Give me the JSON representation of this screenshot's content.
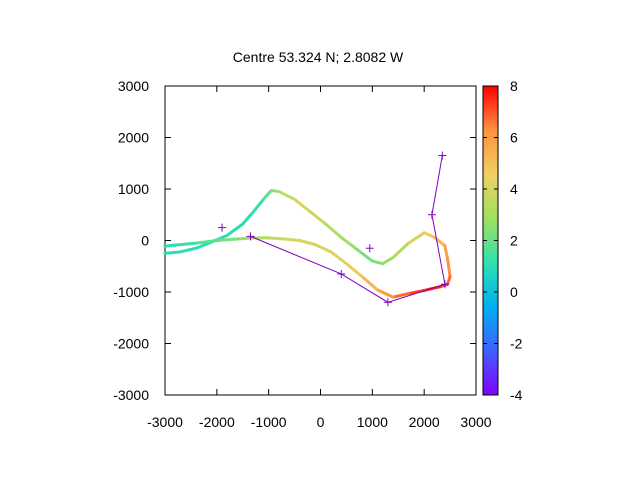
{
  "chart_data": {
    "type": "line",
    "title": "Centre 53.324 N; 2.8082  W",
    "xlabel": "",
    "ylabel": "",
    "xlim": [
      -3000,
      3000
    ],
    "ylim": [
      -3000,
      3000
    ],
    "xticks": [
      "-3000",
      "-2000",
      "-1000",
      "0",
      "1000",
      "2000",
      "3000"
    ],
    "yticks": [
      "3000",
      "2000",
      "1000",
      "0",
      "-1000",
      "-2000",
      "-3000"
    ],
    "grid": false,
    "colorbar": {
      "range": [
        -4,
        8
      ],
      "ticks": [
        "8",
        "6",
        "4",
        "2",
        "0",
        "-2",
        "-4"
      ],
      "palette": [
        "#8000ff",
        "#4060ff",
        "#00b0f0",
        "#30e0b0",
        "#a0e060",
        "#f0d060",
        "#ff9040",
        "#ff0000"
      ]
    },
    "series": [
      {
        "values_note": "",
        "color_scale": true,
        "x": [
          -3000,
          -2700,
          -2400,
          -2100,
          -1800,
          -1500,
          -1300,
          -1100,
          -950,
          -800,
          -500,
          -200,
          100,
          400,
          700,
          1000,
          1200,
          1400,
          1700,
          2000,
          2200,
          2400,
          2450,
          2500,
          2450,
          2300,
          2000,
          1700,
          1400,
          1100,
          800,
          500,
          200,
          -100,
          -400,
          -700,
          -1000,
          -1300,
          -1600,
          -2000,
          -2400,
          -2800,
          -3000
        ],
        "y": [
          -250,
          -220,
          -150,
          -30,
          100,
          320,
          550,
          800,
          970,
          950,
          800,
          560,
          320,
          60,
          -170,
          -400,
          -450,
          -330,
          -50,
          150,
          60,
          -100,
          -350,
          -700,
          -850,
          -900,
          -970,
          -1030,
          -1100,
          -960,
          -700,
          -450,
          -220,
          -80,
          0,
          30,
          50,
          50,
          30,
          0,
          -50,
          -90,
          -110
        ],
        "z": [
          1,
          1,
          1,
          1,
          1,
          1,
          1,
          1.5,
          2,
          3,
          4,
          4,
          3.5,
          3,
          2.5,
          2,
          2.5,
          3,
          3.5,
          4.5,
          5,
          5.5,
          6,
          6.5,
          7,
          7.5,
          7.5,
          7,
          6.5,
          5.5,
          5,
          4.5,
          4,
          4,
          4,
          4,
          3.5,
          3,
          2.5,
          2,
          1.5,
          1,
          1
        ]
      },
      {
        "name": "",
        "color": "#8000c0",
        "marker": "+",
        "x": [
          2350,
          2150,
          2400,
          1300,
          400,
          -1350
        ],
        "y": [
          1650,
          500,
          -850,
          -1200,
          -650,
          80
        ]
      }
    ],
    "extra_markers": {
      "color": "#8000c0",
      "marker": "+",
      "x": [
        -1900,
        950
      ],
      "y": [
        250,
        -150
      ]
    }
  }
}
